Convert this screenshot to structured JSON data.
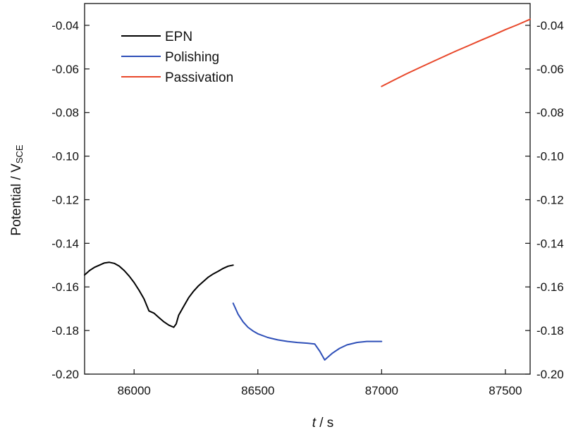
{
  "chart_data": {
    "type": "line",
    "xlabel_var": "t",
    "xlabel_unit": " / s",
    "ylabel_main": "Potential / V",
    "ylabel_sub": "SCE",
    "xlim": [
      85800,
      87600
    ],
    "ylim": [
      -0.2,
      -0.03
    ],
    "x_ticks": [
      86000,
      86500,
      87000,
      87500
    ],
    "x_tick_labels": [
      "86000",
      "86500",
      "87000",
      "87500"
    ],
    "y_ticks": [
      -0.04,
      -0.06,
      -0.08,
      -0.1,
      -0.12,
      -0.14,
      -0.16,
      -0.18,
      -0.2
    ],
    "y_tick_labels": [
      "-0.04",
      "-0.06",
      "-0.08",
      "-0.10",
      "-0.12",
      "-0.14",
      "-0.16",
      "-0.18",
      "-0.20"
    ],
    "legend_position": "top-left",
    "grid": false,
    "series": [
      {
        "name": "EPN",
        "color": "#000000",
        "points": [
          [
            85800,
            -0.1545
          ],
          [
            85820,
            -0.1525
          ],
          [
            85840,
            -0.151
          ],
          [
            85860,
            -0.15
          ],
          [
            85880,
            -0.149
          ],
          [
            85900,
            -0.1487
          ],
          [
            85920,
            -0.1492
          ],
          [
            85940,
            -0.1505
          ],
          [
            85960,
            -0.1525
          ],
          [
            85980,
            -0.155
          ],
          [
            86000,
            -0.158
          ],
          [
            86020,
            -0.1615
          ],
          [
            86040,
            -0.1655
          ],
          [
            86060,
            -0.171
          ],
          [
            86080,
            -0.172
          ],
          [
            86100,
            -0.174
          ],
          [
            86120,
            -0.176
          ],
          [
            86140,
            -0.1775
          ],
          [
            86160,
            -0.1785
          ],
          [
            86170,
            -0.177
          ],
          [
            86180,
            -0.173
          ],
          [
            86200,
            -0.169
          ],
          [
            86220,
            -0.165
          ],
          [
            86240,
            -0.162
          ],
          [
            86260,
            -0.1595
          ],
          [
            86280,
            -0.1575
          ],
          [
            86300,
            -0.1555
          ],
          [
            86320,
            -0.154
          ],
          [
            86340,
            -0.1528
          ],
          [
            86360,
            -0.1515
          ],
          [
            86380,
            -0.1505
          ],
          [
            86400,
            -0.15
          ]
        ]
      },
      {
        "name": "Polishing",
        "color": "#2e4fb8",
        "points": [
          [
            86400,
            -0.1675
          ],
          [
            86420,
            -0.1725
          ],
          [
            86440,
            -0.176
          ],
          [
            86460,
            -0.1785
          ],
          [
            86480,
            -0.1802
          ],
          [
            86500,
            -0.1815
          ],
          [
            86540,
            -0.1832
          ],
          [
            86580,
            -0.1843
          ],
          [
            86620,
            -0.185
          ],
          [
            86660,
            -0.1855
          ],
          [
            86700,
            -0.1858
          ],
          [
            86730,
            -0.1862
          ],
          [
            86750,
            -0.1895
          ],
          [
            86770,
            -0.1935
          ],
          [
            86780,
            -0.1925
          ],
          [
            86800,
            -0.1905
          ],
          [
            86830,
            -0.1882
          ],
          [
            86860,
            -0.1866
          ],
          [
            86900,
            -0.1855
          ],
          [
            86940,
            -0.185
          ],
          [
            87000,
            -0.185
          ]
        ]
      },
      {
        "name": "Passivation",
        "color": "#e8472a",
        "points": [
          [
            87000,
            -0.068
          ],
          [
            87050,
            -0.0651
          ],
          [
            87100,
            -0.0623
          ],
          [
            87150,
            -0.0596
          ],
          [
            87200,
            -0.057
          ],
          [
            87250,
            -0.0544
          ],
          [
            87300,
            -0.0518
          ],
          [
            87350,
            -0.0494
          ],
          [
            87400,
            -0.0469
          ],
          [
            87450,
            -0.0445
          ],
          [
            87500,
            -0.042
          ],
          [
            87550,
            -0.0397
          ],
          [
            87600,
            -0.0372
          ]
        ]
      }
    ]
  }
}
